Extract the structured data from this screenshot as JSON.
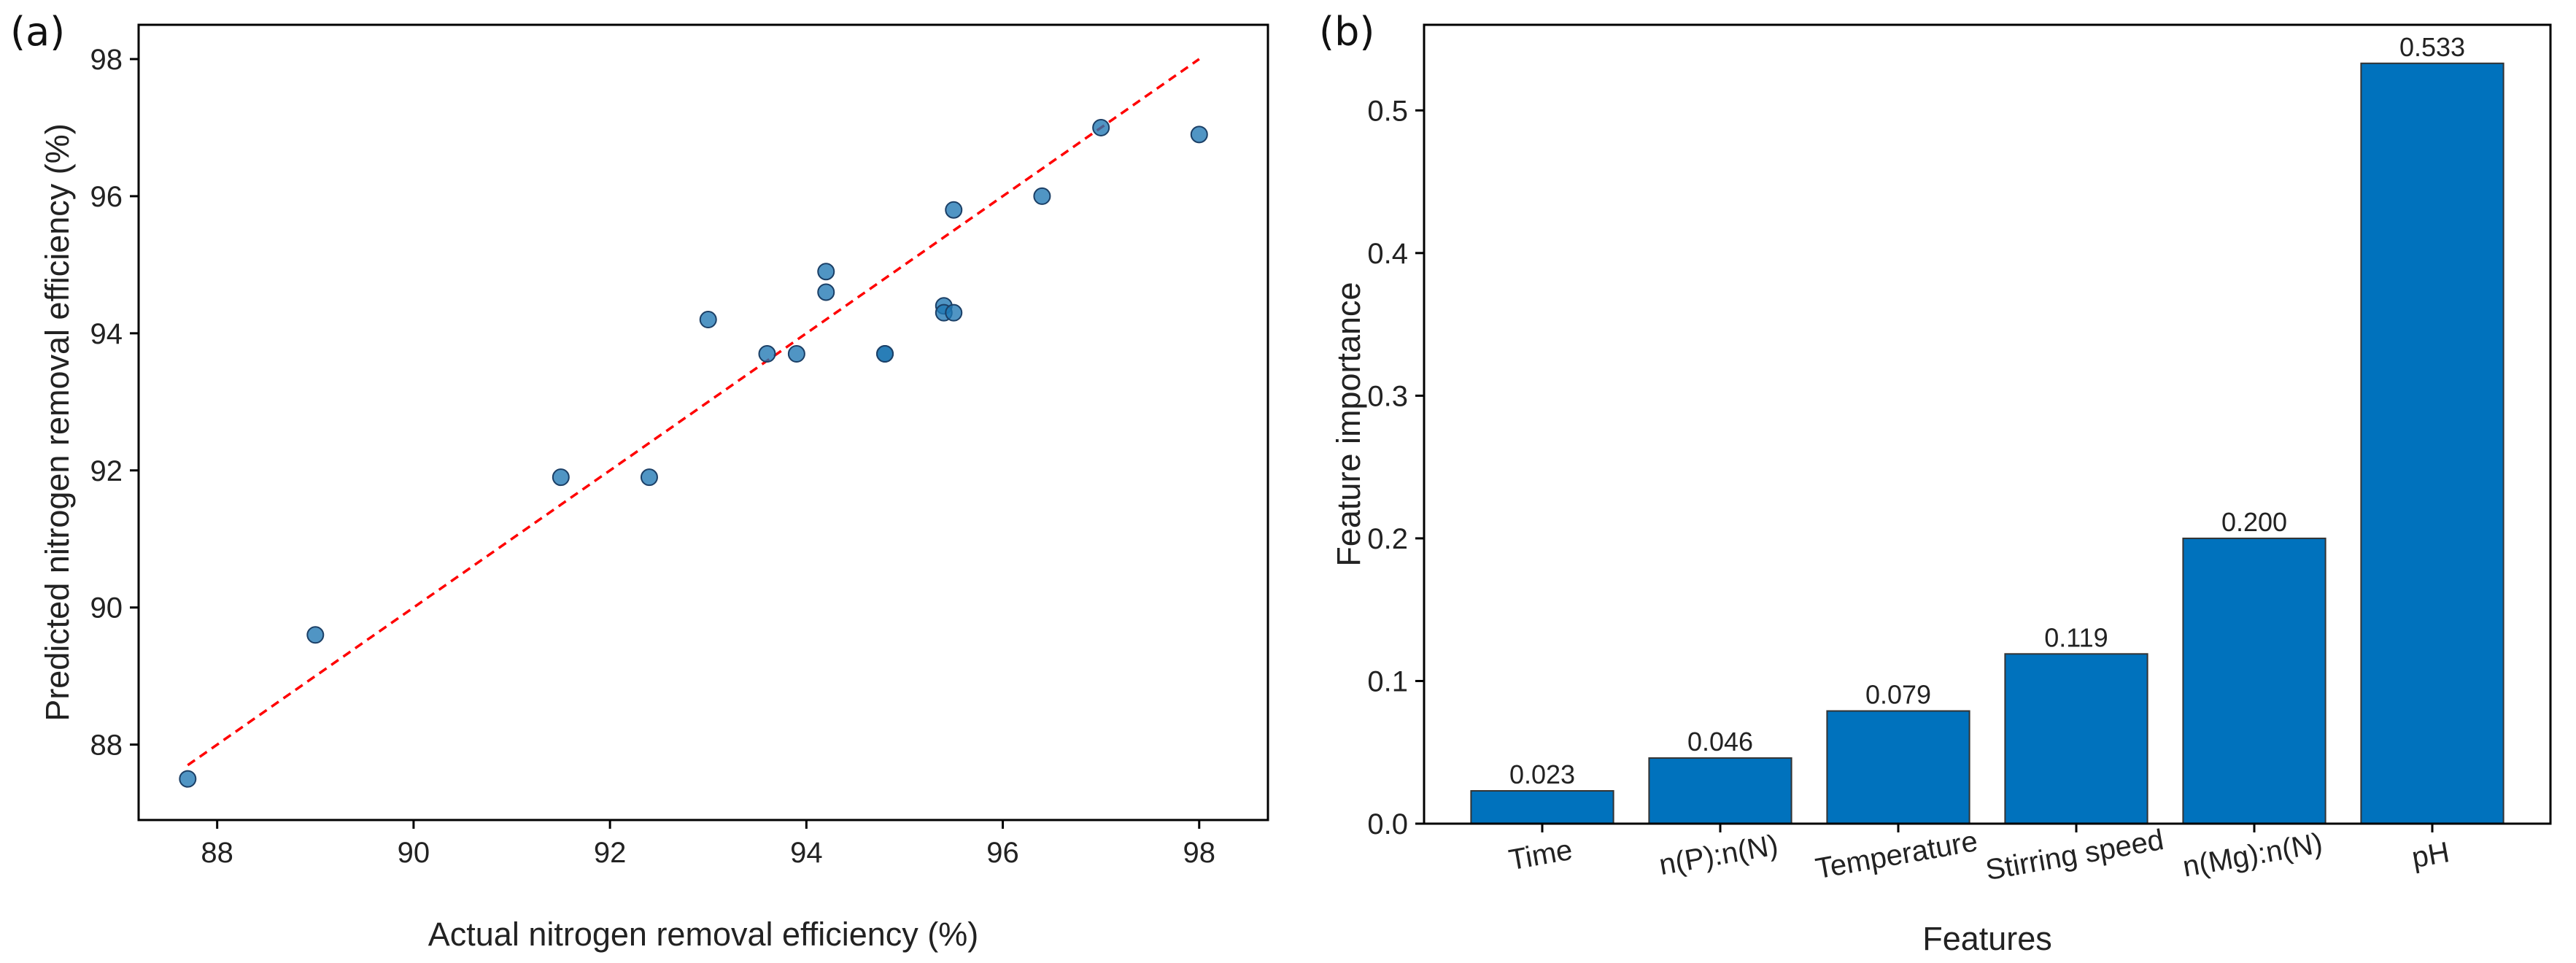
{
  "chart_data": [
    {
      "panel": "(a)",
      "type": "scatter",
      "title": "",
      "xlabel": "Actual nitrogen removal efficiency (%)",
      "ylabel": "Predicted nitrogen removal efficiency (%)",
      "xlim": [
        87.2,
        98.7
      ],
      "ylim": [
        86.9,
        98.5
      ],
      "xticks": [
        88,
        90,
        92,
        94,
        96,
        98
      ],
      "yticks": [
        88,
        90,
        92,
        94,
        96,
        98
      ],
      "points": [
        {
          "x": 87.7,
          "y": 87.5
        },
        {
          "x": 89.0,
          "y": 89.6
        },
        {
          "x": 91.5,
          "y": 91.9
        },
        {
          "x": 92.4,
          "y": 91.9
        },
        {
          "x": 93.0,
          "y": 94.2
        },
        {
          "x": 93.6,
          "y": 93.7
        },
        {
          "x": 93.9,
          "y": 93.7
        },
        {
          "x": 94.2,
          "y": 94.9
        },
        {
          "x": 94.2,
          "y": 94.6
        },
        {
          "x": 94.8,
          "y": 93.7
        },
        {
          "x": 94.8,
          "y": 93.7
        },
        {
          "x": 95.4,
          "y": 94.4
        },
        {
          "x": 95.4,
          "y": 94.3
        },
        {
          "x": 95.5,
          "y": 95.8
        },
        {
          "x": 95.5,
          "y": 94.3
        },
        {
          "x": 96.4,
          "y": 96.0
        },
        {
          "x": 97.0,
          "y": 97.0
        },
        {
          "x": 98.0,
          "y": 96.9
        }
      ],
      "reference_line": {
        "x": [
          87.7,
          98.0
        ],
        "y": [
          87.7,
          98.0
        ],
        "style": "dashed",
        "color": "#ff0000"
      },
      "marker_color": "#1f77b4"
    },
    {
      "panel": "(b)",
      "type": "bar",
      "title": "",
      "xlabel": "Features",
      "ylabel": "Feature importance",
      "categories": [
        "Time",
        "n(P):n(N)",
        "Temperature",
        "Stirring speed",
        "n(Mg):n(N)",
        "pH"
      ],
      "values": [
        0.023,
        0.046,
        0.079,
        0.119,
        0.2,
        0.533
      ],
      "data_labels": [
        "0.023",
        "0.046",
        "0.079",
        "0.119",
        "0.200",
        "0.533"
      ],
      "ylim": [
        0,
        0.56
      ],
      "yticks": [
        0.0,
        0.1,
        0.2,
        0.3,
        0.4,
        0.5
      ],
      "ytick_labels": [
        "0.0",
        "0.1",
        "0.2",
        "0.3",
        "0.4",
        "0.5"
      ],
      "bar_color": "#0072bd"
    }
  ]
}
